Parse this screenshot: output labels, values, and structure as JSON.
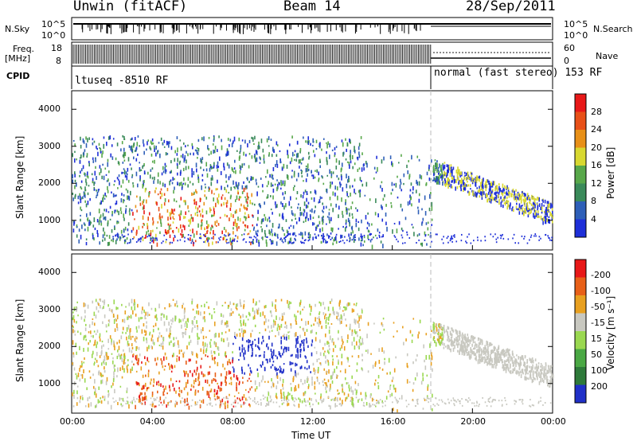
{
  "header": {
    "station": "Unwin (fitACF)",
    "beam": "Beam 14",
    "date": "28/Sep/2011"
  },
  "sidepanel": {
    "nsky_label": "N.Sky",
    "freq_label_1": "Freq.",
    "freq_label_2": "[MHz]",
    "cpid_label": "CPID",
    "nsearch_label": "N.Search",
    "nave_label": "Nave"
  },
  "cpid": {
    "left": "ltuseq -8510 RF",
    "right": "normal (fast stereo) 153 RF"
  },
  "chart_data": [
    {
      "type": "line",
      "name": "noise",
      "left_ticks": [
        "10^5",
        "10^0"
      ],
      "right_ticks": [
        "10^5",
        "10^0"
      ]
    },
    {
      "type": "line",
      "name": "frequency",
      "left_ticks": [
        "18",
        "8"
      ],
      "right_ticks": [
        "60",
        "0"
      ]
    },
    {
      "type": "heatmap",
      "name": "power",
      "xlabel": "",
      "ylabel": "Slant Range [km]",
      "yticks": [
        1000,
        2000,
        3000,
        4000
      ],
      "ylim": [
        200,
        4500
      ],
      "xlim": [
        0,
        24
      ],
      "colorbar_label": "Power [dB]",
      "colorbar_ticks": [
        "4",
        "8",
        "12",
        "16",
        "20",
        "24",
        "28"
      ],
      "colors": [
        "#1e2fd8",
        "#2e5fb8",
        "#3a8a5a",
        "#58a84a",
        "#d8d830",
        "#e89018",
        "#e85018",
        "#e81818"
      ]
    },
    {
      "type": "heatmap",
      "name": "velocity",
      "xlabel": "Time UT",
      "ylabel": "Slant Range [km]",
      "yticks": [
        1000,
        2000,
        3000,
        4000
      ],
      "ylim": [
        200,
        4500
      ],
      "xlim": [
        0,
        24
      ],
      "xticks": [
        "00:00",
        "04:00",
        "08:00",
        "12:00",
        "16:00",
        "20:00",
        "00:00"
      ],
      "colorbar_label": "Velocity [m s⁻¹]",
      "colorbar_ticks": [
        "200",
        "100",
        "50",
        "15",
        "-15",
        "-50",
        "-100",
        "-200"
      ],
      "colors": [
        "#2030c8",
        "#2e7a3a",
        "#4aa844",
        "#9ad850",
        "#c8c8c0",
        "#e8a020",
        "#e86018",
        "#e81818"
      ]
    }
  ]
}
